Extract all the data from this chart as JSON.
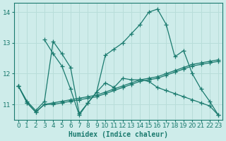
{
  "xlabel": "Humidex (Indice chaleur)",
  "xlim": [
    -0.5,
    23.5
  ],
  "ylim": [
    10.5,
    14.3
  ],
  "yticks": [
    11,
    12,
    13,
    14
  ],
  "xticks": [
    0,
    1,
    2,
    3,
    4,
    5,
    6,
    7,
    8,
    9,
    10,
    11,
    12,
    13,
    14,
    15,
    16,
    17,
    18,
    19,
    20,
    21,
    22,
    23
  ],
  "bg_color": "#ceecea",
  "line_color": "#1a7a6e",
  "grid_color": "#b8ddd9",
  "lines": [
    {
      "x": [
        0,
        1,
        2,
        3,
        4,
        5,
        6,
        7,
        8,
        9,
        10,
        11,
        12,
        13,
        14,
        15,
        16,
        17,
        18,
        19,
        20,
        21,
        22,
        23
      ],
      "y": [
        11.6,
        11.1,
        10.8,
        11.1,
        13.05,
        12.65,
        12.2,
        10.7,
        11.05,
        11.4,
        12.6,
        12.8,
        13.0,
        13.3,
        13.6,
        14.0,
        14.1,
        13.6,
        12.55,
        12.75,
        12.0,
        11.5,
        11.1,
        10.65
      ]
    },
    {
      "x": [
        3,
        4,
        5,
        6,
        7,
        8,
        9,
        10,
        11,
        12,
        13,
        14,
        15,
        16,
        17,
        18,
        19,
        20,
        21,
        22,
        23
      ],
      "y": [
        13.1,
        12.65,
        12.25,
        11.5,
        10.65,
        11.05,
        11.4,
        11.7,
        11.55,
        11.85,
        11.8,
        11.8,
        11.75,
        11.55,
        11.45,
        11.35,
        11.25,
        11.15,
        11.05,
        10.95,
        10.65
      ]
    },
    {
      "x": [
        0,
        1,
        2,
        3,
        4,
        5,
        6,
        7,
        8,
        9,
        10,
        11,
        12,
        13,
        14,
        15,
        16,
        17,
        18,
        19,
        20,
        21,
        22,
        23
      ],
      "y": [
        11.6,
        11.05,
        10.75,
        11.0,
        11.05,
        11.1,
        11.15,
        11.2,
        11.25,
        11.3,
        11.4,
        11.5,
        11.6,
        11.7,
        11.8,
        11.85,
        11.9,
        12.0,
        12.1,
        12.2,
        12.3,
        12.35,
        12.4,
        12.45
      ]
    },
    {
      "x": [
        0,
        1,
        2,
        3,
        4,
        5,
        6,
        7,
        8,
        9,
        10,
        11,
        12,
        13,
        14,
        15,
        16,
        17,
        18,
        19,
        20,
        21,
        22,
        23
      ],
      "y": [
        11.6,
        11.05,
        10.75,
        11.0,
        11.0,
        11.05,
        11.1,
        11.15,
        11.2,
        11.25,
        11.35,
        11.45,
        11.55,
        11.65,
        11.75,
        11.8,
        11.85,
        11.95,
        12.05,
        12.15,
        12.25,
        12.3,
        12.35,
        12.4
      ]
    }
  ]
}
